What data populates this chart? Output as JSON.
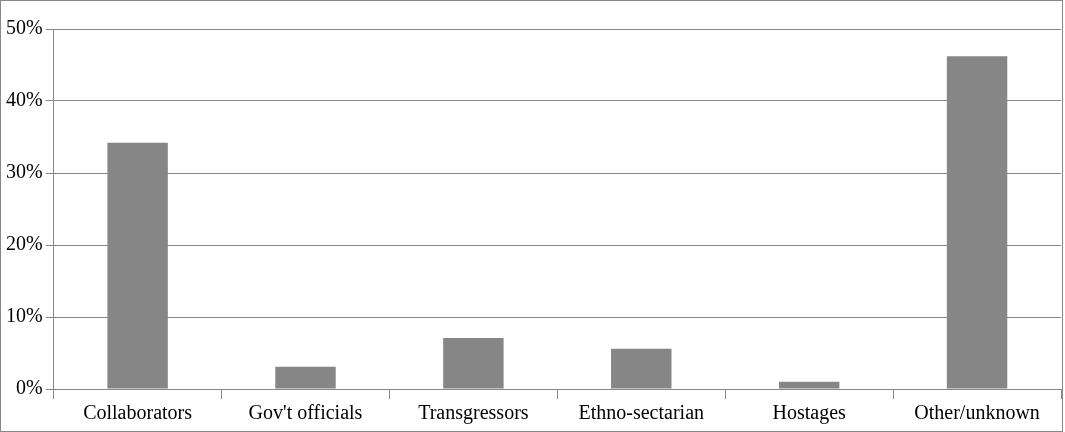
{
  "chart_data": {
    "type": "bar",
    "categories": [
      "Collaborators",
      "Gov't officials",
      "Transgressors",
      "Ethno-sectarian",
      "Hostages",
      "Other/unknown"
    ],
    "values": [
      34.2,
      3.1,
      7.1,
      5.6,
      1.0,
      46.2
    ],
    "color": "#868686",
    "ylim": [
      0,
      50
    ],
    "yticks": [
      {
        "value": 0,
        "label": "0%"
      },
      {
        "value": 10,
        "label": "10%"
      },
      {
        "value": 20,
        "label": "20%"
      },
      {
        "value": 30,
        "label": "30%"
      },
      {
        "value": 40,
        "label": "40%"
      },
      {
        "value": 50,
        "label": "50%"
      }
    ],
    "grid": "y"
  }
}
